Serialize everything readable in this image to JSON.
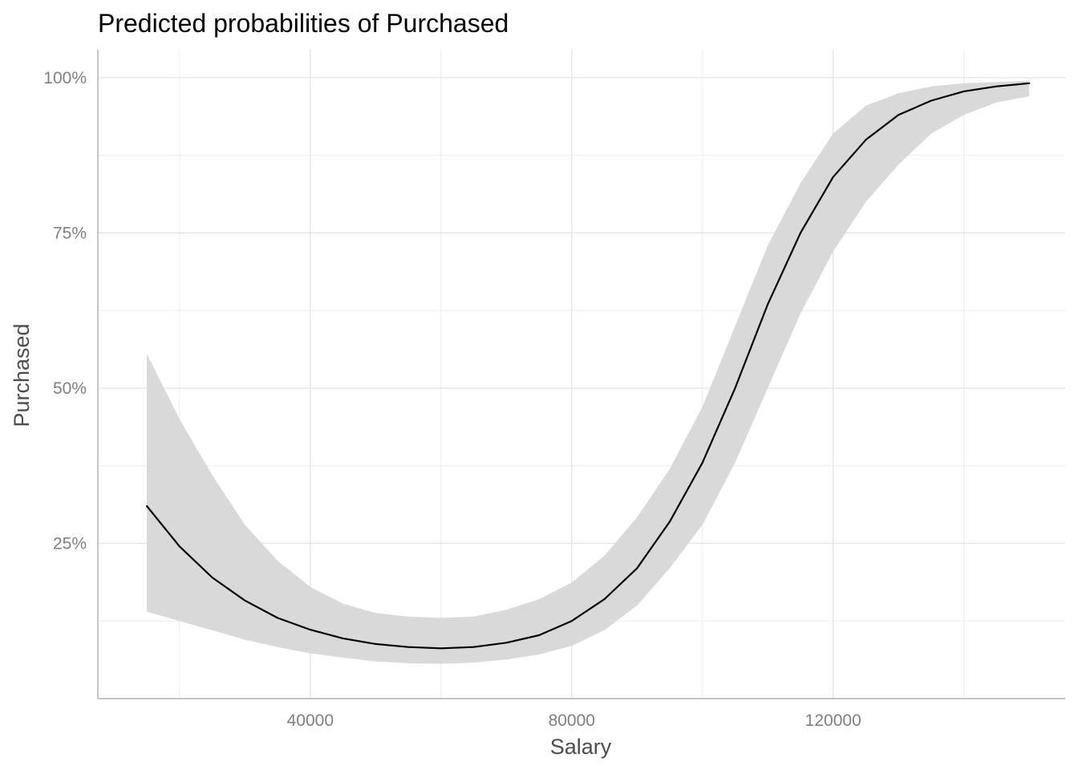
{
  "chart_data": {
    "type": "line",
    "title": "Predicted probabilities of Purchased",
    "xlabel": "Salary",
    "ylabel": "Purchased",
    "xlim": [
      7500,
      155500
    ],
    "ylim": [
      0,
      1.045
    ],
    "x_ticks": [
      {
        "value": 40000,
        "label": "40000"
      },
      {
        "value": 80000,
        "label": "80000"
      },
      {
        "value": 120000,
        "label": "120000"
      }
    ],
    "x_minor_ticks": [
      20000,
      60000,
      100000,
      140000
    ],
    "y_ticks": [
      {
        "value": 0.25,
        "label": "25%"
      },
      {
        "value": 0.5,
        "label": "50%"
      },
      {
        "value": 0.75,
        "label": "75%"
      },
      {
        "value": 1.0,
        "label": "100%"
      }
    ],
    "y_minor_ticks": [
      0.125,
      0.375,
      0.625,
      0.875
    ],
    "grid": true,
    "legend": "none",
    "colors": {
      "line": "#000000",
      "ribbon": "#d9d9d9",
      "grid": "#ebebeb",
      "axis": "#b3b3b3"
    },
    "series": [
      {
        "x": [
          15000,
          20000,
          25000,
          30000,
          35000,
          40000,
          45000,
          50000,
          55000,
          60000,
          65000,
          70000,
          75000,
          80000,
          85000,
          90000,
          95000,
          100000,
          105000,
          110000,
          115000,
          120000,
          125000,
          130000,
          135000,
          140000,
          145000,
          150000
        ],
        "y": [
          0.31,
          0.245,
          0.195,
          0.158,
          0.13,
          0.111,
          0.097,
          0.088,
          0.083,
          0.081,
          0.083,
          0.09,
          0.102,
          0.125,
          0.16,
          0.21,
          0.285,
          0.38,
          0.5,
          0.635,
          0.75,
          0.84,
          0.9,
          0.94,
          0.963,
          0.978,
          0.986,
          0.991
        ],
        "lower": [
          0.14,
          0.125,
          0.11,
          0.095,
          0.083,
          0.073,
          0.066,
          0.06,
          0.057,
          0.056,
          0.058,
          0.063,
          0.071,
          0.085,
          0.11,
          0.15,
          0.21,
          0.28,
          0.38,
          0.5,
          0.62,
          0.72,
          0.8,
          0.86,
          0.91,
          0.94,
          0.96,
          0.97
        ],
        "upper": [
          0.555,
          0.45,
          0.36,
          0.28,
          0.222,
          0.18,
          0.153,
          0.138,
          0.132,
          0.13,
          0.132,
          0.143,
          0.16,
          0.187,
          0.23,
          0.292,
          0.37,
          0.47,
          0.6,
          0.73,
          0.83,
          0.91,
          0.955,
          0.975,
          0.986,
          0.991,
          0.993,
          0.995
        ]
      }
    ]
  }
}
